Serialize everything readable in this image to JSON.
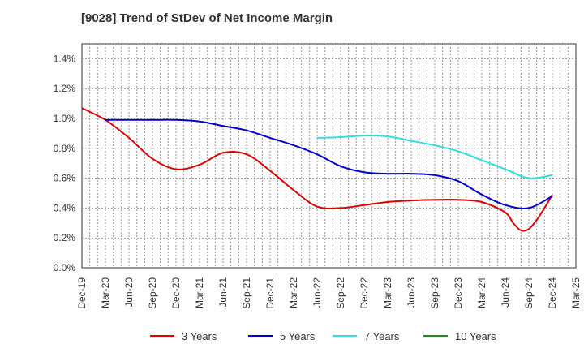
{
  "chart_data": {
    "type": "line",
    "title": "[9028]  Trend of StDev of Net Income Margin",
    "xlabel": "",
    "ylabel": "",
    "x_ticks": [
      "Dec-19",
      "Mar-20",
      "Jun-20",
      "Sep-20",
      "Dec-20",
      "Mar-21",
      "Jun-21",
      "Sep-21",
      "Dec-21",
      "Mar-22",
      "Jun-22",
      "Sep-22",
      "Dec-22",
      "Mar-23",
      "Jun-23",
      "Sep-23",
      "Dec-23",
      "Mar-24",
      "Jun-24",
      "Sep-24",
      "Dec-24",
      "Mar-25"
    ],
    "y_ticks": [
      "0.0%",
      "0.2%",
      "0.4%",
      "0.6%",
      "0.8%",
      "1.0%",
      "1.2%",
      "1.4%"
    ],
    "ylim": [
      0,
      1.5
    ],
    "grid": true,
    "legend_position": "bottom",
    "series": [
      {
        "name": "3 Years",
        "color": "#dd0000",
        "x": [
          "Dec-19",
          "Mar-20",
          "Jun-20",
          "Sep-20",
          "Dec-20",
          "Mar-21",
          "Jun-21",
          "Sep-21",
          "Dec-21",
          "Mar-22",
          "Jun-22",
          "Sep-22",
          "Dec-22",
          "Mar-23",
          "Jun-23",
          "Sep-23",
          "Dec-23",
          "Mar-24",
          "Jun-24",
          "Jul-24",
          "Aug-24",
          "Sep-24",
          "Oct-24",
          "Nov-24",
          "Dec-24"
        ],
        "values": [
          1.07,
          0.99,
          0.87,
          0.73,
          0.66,
          0.69,
          0.77,
          0.76,
          0.65,
          0.52,
          0.41,
          0.4,
          0.42,
          0.44,
          0.45,
          0.455,
          0.455,
          0.44,
          0.37,
          0.3,
          0.25,
          0.26,
          0.32,
          0.4,
          0.49
        ]
      },
      {
        "name": "5 Years",
        "color": "#0000cc",
        "x": [
          "Mar-20",
          "Jun-20",
          "Sep-20",
          "Dec-20",
          "Mar-21",
          "Jun-21",
          "Sep-21",
          "Dec-21",
          "Mar-22",
          "Jun-22",
          "Sep-22",
          "Dec-22",
          "Mar-23",
          "Jun-23",
          "Sep-23",
          "Dec-23",
          "Mar-24",
          "Jun-24",
          "Sep-24",
          "Dec-24"
        ],
        "values": [
          0.99,
          0.99,
          0.99,
          0.99,
          0.98,
          0.95,
          0.92,
          0.87,
          0.82,
          0.76,
          0.68,
          0.64,
          0.63,
          0.63,
          0.62,
          0.58,
          0.49,
          0.42,
          0.4,
          0.48
        ]
      },
      {
        "name": "7 Years",
        "color": "#33dddd",
        "x": [
          "Jun-22",
          "Sep-22",
          "Dec-22",
          "Mar-23",
          "Jun-23",
          "Sep-23",
          "Dec-23",
          "Mar-24",
          "Jun-24",
          "Sep-24",
          "Dec-24"
        ],
        "values": [
          0.87,
          0.875,
          0.885,
          0.88,
          0.85,
          0.82,
          0.78,
          0.72,
          0.66,
          0.6,
          0.62
        ]
      },
      {
        "name": "10 Years",
        "color": "#228822",
        "x": [],
        "values": []
      }
    ]
  }
}
